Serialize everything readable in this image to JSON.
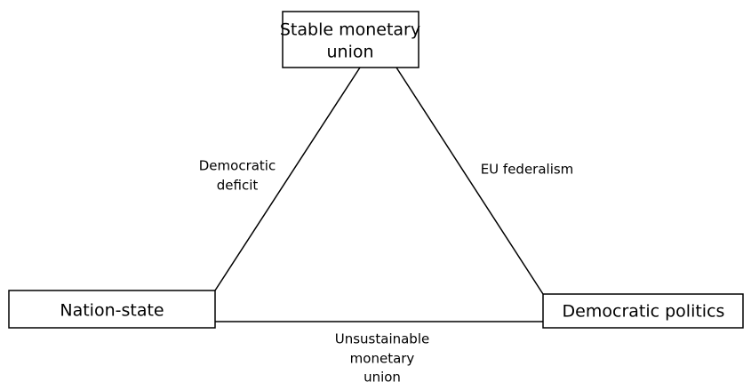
{
  "nodes": [
    {
      "lines": [
        "Stable monetary",
        "union"
      ]
    },
    {
      "lines": [
        "Nation-state"
      ]
    },
    {
      "lines": [
        "Democratic politics"
      ]
    }
  ],
  "edges": [
    {
      "lines": [
        "Democratic",
        "deficit"
      ]
    },
    {
      "lines": [
        "EU federalism"
      ]
    },
    {
      "lines": [
        "Unsustainable",
        "monetary",
        "union"
      ]
    }
  ]
}
